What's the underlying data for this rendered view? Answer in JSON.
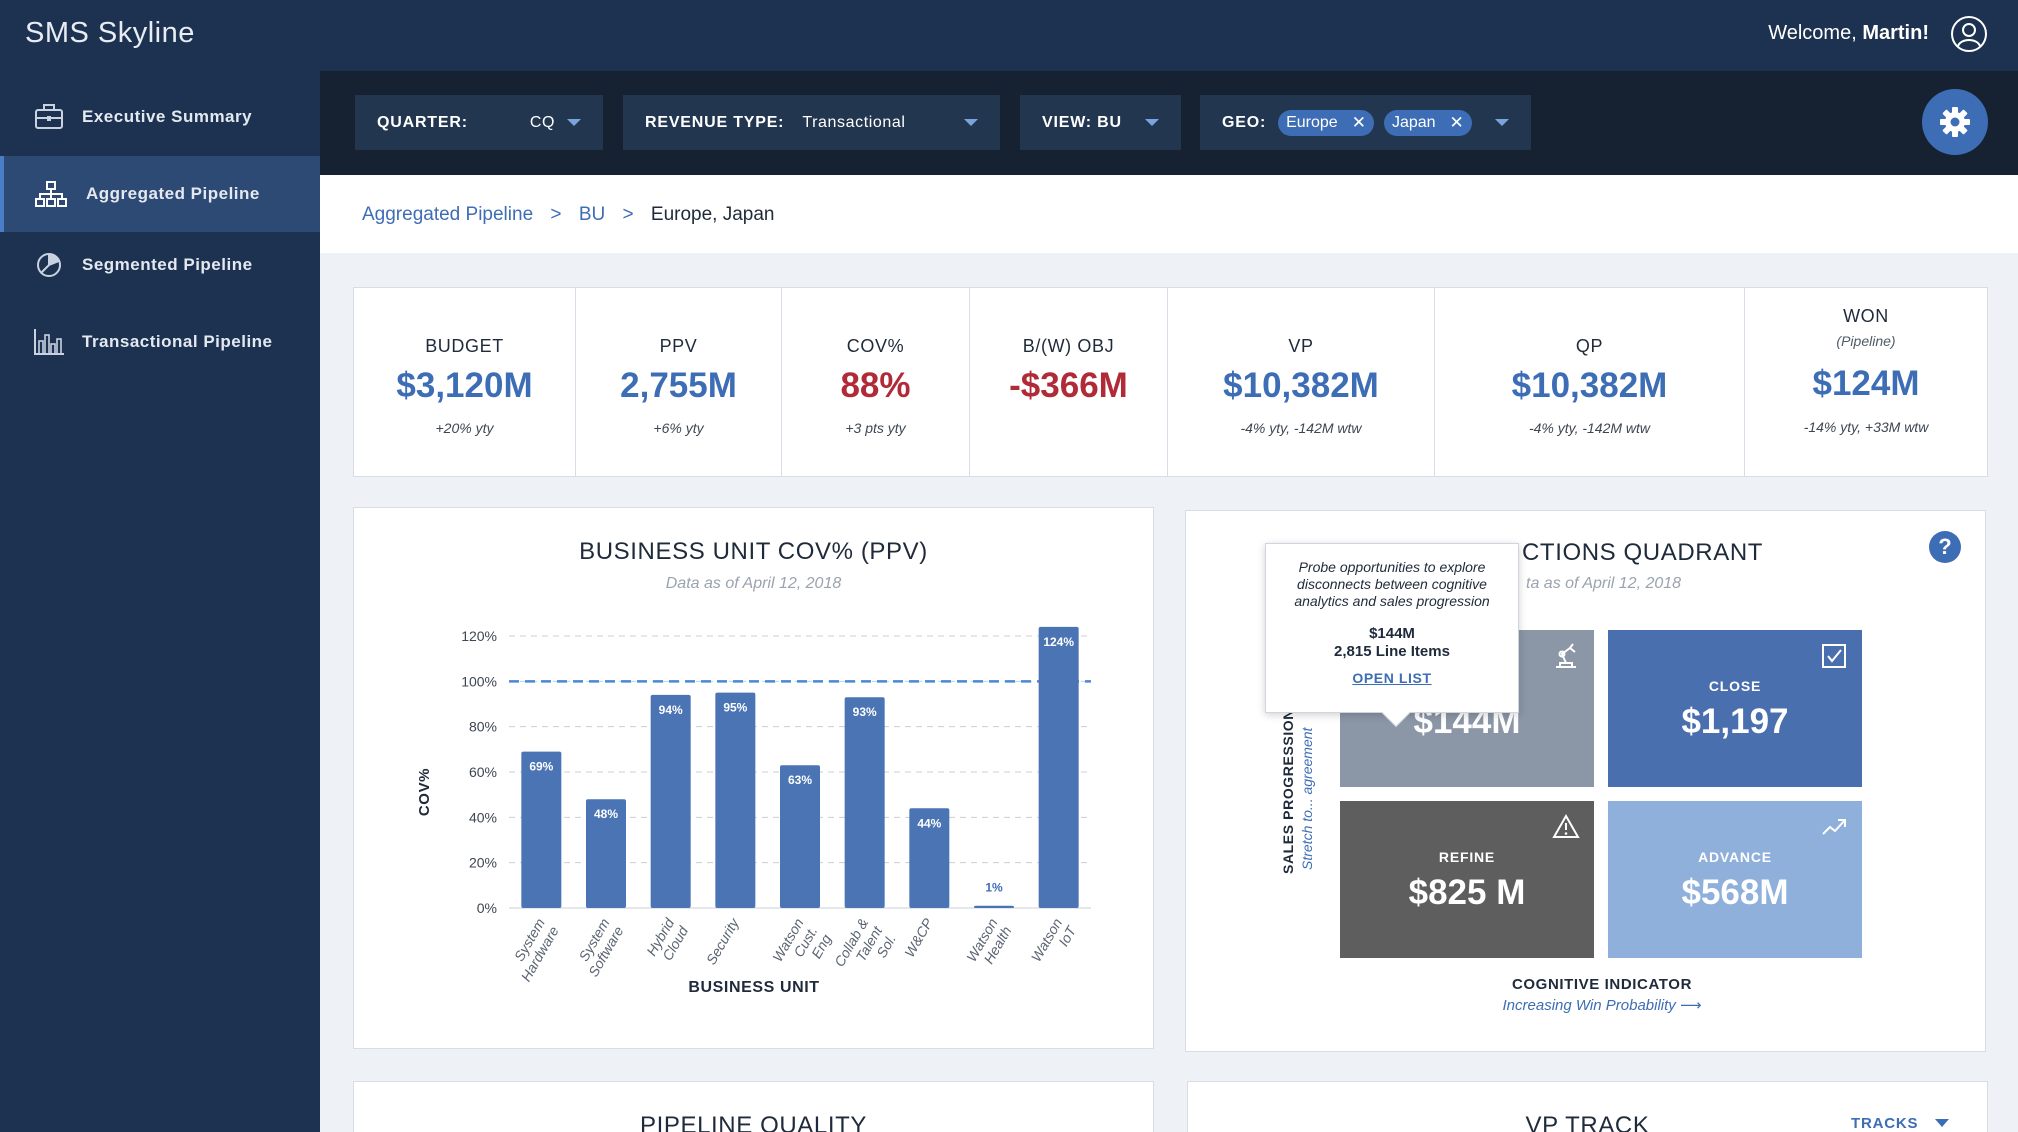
{
  "header": {
    "app_title": "SMS Skyline",
    "welcome_prefix": "Welcome,",
    "user_name": "Martin!",
    "user_icon": "user-circle-icon"
  },
  "sidebar": {
    "items": [
      {
        "label": "Executive Summary",
        "icon": "briefcase-icon",
        "active": false
      },
      {
        "label": "Aggregated Pipeline",
        "icon": "hierarchy-icon",
        "active": true
      },
      {
        "label": "Segmented Pipeline",
        "icon": "pie-chart-icon",
        "active": false
      },
      {
        "label": "Transactional Pipeline",
        "icon": "bar-chart-icon",
        "active": false
      }
    ]
  },
  "filters": {
    "quarter": {
      "label": "QUARTER:",
      "value": "CQ"
    },
    "revenue_type": {
      "label": "REVENUE TYPE:",
      "value": "Transactional"
    },
    "view": {
      "label": "VIEW: BU"
    },
    "geo": {
      "label": "GEO:",
      "chips": [
        "Europe",
        "Japan"
      ]
    },
    "settings_icon": "gear-icon"
  },
  "breadcrumb": {
    "items": [
      "Aggregated Pipeline",
      "BU"
    ],
    "current": "Europe, Japan",
    "separator": ">"
  },
  "kpis": [
    {
      "title": "BUDGET",
      "value": "$3,120M",
      "delta": "+20% yty",
      "negative": false
    },
    {
      "title": "PPV",
      "value": "2,755M",
      "delta": "+6% yty",
      "negative": false
    },
    {
      "title": "COV%",
      "value": "88%",
      "delta": "+3 pts yty",
      "negative": true
    },
    {
      "title": "B/(W) OBJ",
      "value": "-$366M",
      "delta": "",
      "negative": true
    },
    {
      "title": "VP",
      "value": "$10,382M",
      "delta": "-4% yty, -142M wtw",
      "negative": false
    },
    {
      "title": "QP",
      "value": "$10,382M",
      "delta": "-4% yty, -142M wtw",
      "negative": false
    },
    {
      "title": "WON",
      "subtitle": "(Pipeline)",
      "value": "$124M",
      "delta": "-14% yty, +33M wtw",
      "negative": false
    }
  ],
  "bu_chart": {
    "title": "BUSINESS UNIT COV% (PPV)",
    "subtitle": "Data as of April 12, 2018"
  },
  "chart_data": {
    "type": "bar",
    "title": "BUSINESS UNIT COV% (PPV)",
    "subtitle": "Data as of April 12, 2018",
    "xlabel": "BUSINESS UNIT",
    "ylabel": "COV%",
    "ylim": [
      0,
      120
    ],
    "yticks": [
      0,
      20,
      40,
      60,
      80,
      100,
      120
    ],
    "ytick_labels": [
      "0%",
      "20%",
      "40%",
      "60%",
      "80%",
      "100%",
      "120%"
    ],
    "reference_line": 100,
    "grid": true,
    "categories": [
      [
        "System",
        "Hardware"
      ],
      [
        "System",
        "Software"
      ],
      [
        "Hybrid",
        "Cloud"
      ],
      [
        "Security"
      ],
      [
        "Watson",
        "Cust.",
        "Eng"
      ],
      [
        "Collab &",
        "Talent",
        "Sol."
      ],
      [
        "W&CP"
      ],
      [
        "Watson",
        "Health"
      ],
      [
        "Watson",
        "IoT"
      ]
    ],
    "values": [
      69,
      48,
      94,
      95,
      63,
      93,
      44,
      1,
      124
    ],
    "value_labels": [
      "69%",
      "48%",
      "94%",
      "95%",
      "63%",
      "93%",
      "44%",
      "1%",
      "124%"
    ],
    "bar_color": "#4a74b4"
  },
  "quadrant": {
    "title": "ACTIONS QUADRANT",
    "title_visible": "CTIONS QUADRANT",
    "subtitle_visible": "ta as of April 12, 2018",
    "cells": [
      {
        "label": "",
        "value": "$144M",
        "color": "#8b96a6",
        "icon": "robot-arm-icon"
      },
      {
        "label": "CLOSE",
        "value": "$1,197",
        "color": "#4a6fae",
        "icon": "checkbox-icon"
      },
      {
        "label": "REFINE",
        "value": "$825 M",
        "color": "#5e5e5e",
        "icon": "warning-icon"
      },
      {
        "label": "ADVANCE",
        "value": "$568M",
        "color": "#8fb0da",
        "icon": "trend-up-icon"
      }
    ],
    "y_axis_title": "SALES PROGRESSION",
    "y_axis_sub": "Stretch to... agreement",
    "x_axis_title": "COGNITIVE INDICATOR",
    "x_axis_sub": "Increasing Win Probability",
    "help_icon": "?"
  },
  "tooltip": {
    "description": "Probe opportunities to explore disconnects between cognitive analytics and sales progression",
    "amount": "$144M",
    "items": "2,815 Line Items",
    "link": "OPEN LIST"
  },
  "bottom_cards": {
    "pipeline_quality_title": "PIPELINE QUALITY",
    "vp_track_title": "VP TRACK",
    "tracks_label": "TRACKS"
  }
}
